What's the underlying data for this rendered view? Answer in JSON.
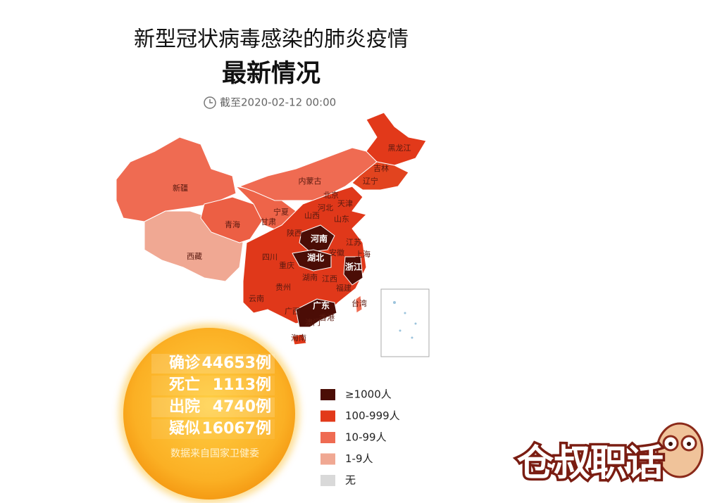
{
  "header": {
    "title": "新型冠状病毒感染的肺炎疫情",
    "subtitle": "最新情况",
    "timestamp": "截至2020-02-12 00:00"
  },
  "map": {
    "labels": [
      "新疆",
      "西藏",
      "青海",
      "甘肃",
      "宁夏",
      "内蒙古",
      "黑龙江",
      "吉林",
      "辽宁",
      "北京",
      "天津",
      "河北",
      "山西",
      "山东",
      "陕西",
      "河南",
      "江苏",
      "安徽",
      "上海",
      "湖北",
      "浙江",
      "四川",
      "重庆",
      "湖南",
      "江西",
      "贵州",
      "福建",
      "云南",
      "广西",
      "广东",
      "台湾",
      "香港",
      "澳门",
      "海南"
    ]
  },
  "stats": {
    "rows": [
      {
        "label": "确诊",
        "value": "44653例"
      },
      {
        "label": "死亡",
        "value": "1113例"
      },
      {
        "label": "出院",
        "value": "4740例"
      },
      {
        "label": "疑似",
        "value": "16067例"
      }
    ],
    "source": "数据来自国家卫健委"
  },
  "legend": {
    "items": [
      {
        "label": "≥1000人",
        "color": "#4b0d06"
      },
      {
        "label": "100-999人",
        "color": "#e2391a"
      },
      {
        "label": "10-99人",
        "color": "#ef6b52"
      },
      {
        "label": "1-9人",
        "color": "#f0a893"
      },
      {
        "label": "无",
        "color": "#d9d9d9"
      }
    ]
  },
  "watermark": "仓叔职话"
}
